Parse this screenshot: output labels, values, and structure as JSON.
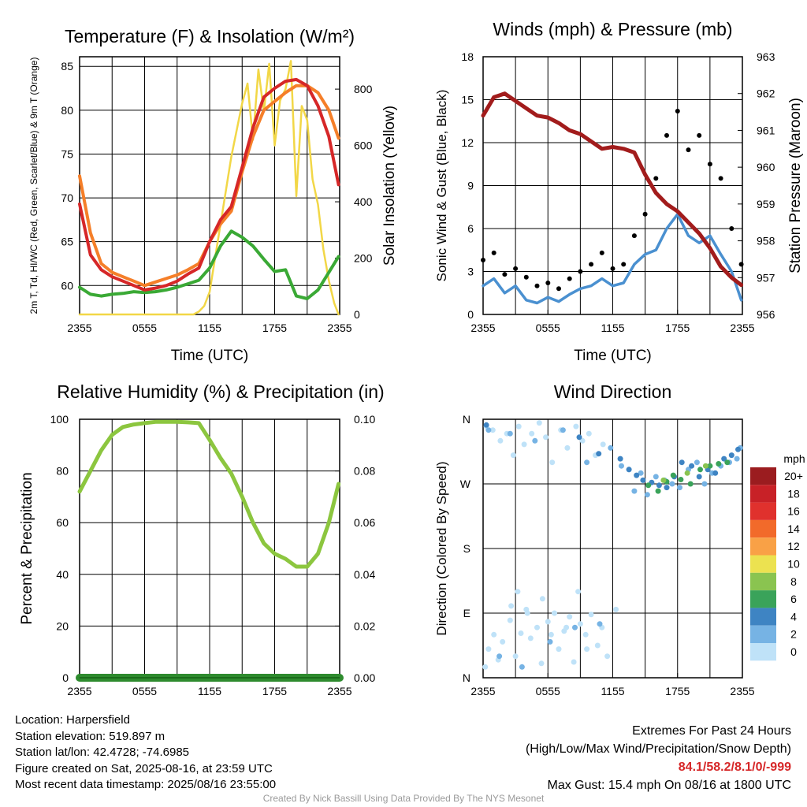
{
  "chart_data": [
    {
      "type": "line",
      "title": "Temperature (F) & Insolation (W/m²)",
      "xlabel": "Time (UTC)",
      "ylabel": "2m T, Td, HI/WC (Red, Green, Scarlet/Blue) & 9m T (Orange)",
      "ylabel_right": "Solar Insolation (Yellow)",
      "x_ticks": [
        "2355",
        "0555",
        "1155",
        "1755",
        "2355"
      ],
      "xlim_hours": [
        0,
        24
      ],
      "ylim": [
        56.7,
        86.1
      ],
      "y_ticks": [
        60,
        65,
        70,
        75,
        80,
        85
      ],
      "ylim_right": [
        0,
        915
      ],
      "y_ticks_right": [
        0,
        200,
        400,
        600,
        800
      ],
      "grid": true,
      "series": [
        {
          "color": "#d62728",
          "x": [
            0,
            1,
            2,
            3,
            4,
            5,
            6,
            7,
            8,
            9,
            10,
            11,
            12,
            13,
            14,
            15,
            16,
            17,
            18,
            19,
            20,
            21,
            22,
            23,
            23.9
          ],
          "values": [
            69.3,
            63.5,
            61.8,
            61.0,
            60.5,
            60.0,
            59.5,
            59.7,
            60.0,
            60.5,
            61.3,
            62.0,
            65.0,
            67.5,
            69.0,
            73.5,
            78.0,
            81.5,
            82.5,
            83.3,
            83.5,
            82.8,
            80.5,
            77.0,
            71.5
          ]
        },
        {
          "color": "#f57f29",
          "x": [
            0,
            1,
            2,
            3,
            4,
            5,
            6,
            7,
            8,
            9,
            10,
            11,
            12,
            13,
            14,
            15,
            16,
            17,
            18,
            19,
            20,
            21,
            22,
            23,
            23.9
          ],
          "values": [
            72.5,
            66.0,
            62.5,
            61.5,
            61.0,
            60.5,
            60.0,
            60.4,
            60.8,
            61.2,
            61.8,
            62.5,
            65.0,
            67.0,
            68.5,
            73.0,
            77.0,
            80.0,
            81.0,
            82.0,
            82.8,
            82.8,
            82.0,
            80.0,
            76.8
          ]
        },
        {
          "color": "#3aa935",
          "x": [
            0,
            1,
            2,
            3,
            4,
            5,
            6,
            7,
            8,
            9,
            10,
            11,
            12,
            13,
            14,
            15,
            16,
            17,
            18,
            19,
            20,
            21,
            22,
            23,
            23.9
          ],
          "values": [
            59.8,
            59.0,
            58.8,
            59.0,
            59.1,
            59.3,
            59.2,
            59.3,
            59.5,
            59.8,
            60.2,
            60.6,
            62.0,
            64.5,
            66.2,
            65.5,
            64.5,
            63.0,
            61.6,
            61.8,
            58.8,
            58.5,
            59.5,
            61.5,
            63.3
          ]
        },
        {
          "color": "#f2d747",
          "x": [
            0,
            10.5,
            11,
            11.5,
            12,
            13,
            14,
            15,
            15.5,
            16,
            16.5,
            17,
            17.5,
            18,
            18.5,
            19,
            19.5,
            20,
            20.5,
            21,
            21.5,
            22,
            22.5,
            23,
            23.5,
            23.9
          ],
          "values": [
            0,
            0,
            10,
            30,
            80,
            320,
            560,
            750,
            820,
            620,
            870,
            720,
            890,
            600,
            760,
            800,
            900,
            420,
            740,
            690,
            480,
            390,
            230,
            120,
            40,
            0
          ]
        }
      ]
    },
    {
      "type": "line",
      "title": "Winds (mph) & Pressure (mb)",
      "xlabel": "Time (UTC)",
      "ylabel": "Sonic Wind & Gust (Blue, Black)",
      "ylabel_right": "Station Pressure (Maroon)",
      "x_ticks": [
        "2355",
        "0555",
        "1155",
        "1755",
        "2355"
      ],
      "xlim_hours": [
        0,
        24
      ],
      "ylim": [
        0,
        18
      ],
      "y_ticks": [
        0,
        3,
        6,
        9,
        12,
        15,
        18
      ],
      "ylim_right": [
        956,
        963
      ],
      "y_ticks_right": [
        956,
        957,
        958,
        959,
        960,
        961,
        962,
        963
      ],
      "grid": true,
      "series": [
        {
          "color": "#a21c1c",
          "x": [
            0,
            1,
            2,
            3,
            4,
            5,
            6,
            7,
            8,
            9,
            10,
            11,
            12,
            13,
            14,
            15,
            16,
            17,
            18,
            19,
            20,
            21,
            22,
            23,
            23.9
          ],
          "values": [
            961.4,
            961.9,
            962.0,
            961.8,
            961.6,
            961.4,
            961.35,
            961.2,
            961.0,
            960.9,
            960.7,
            960.5,
            960.55,
            960.5,
            960.4,
            959.8,
            959.3,
            959.0,
            958.8,
            958.5,
            958.2,
            957.8,
            957.3,
            957.0,
            956.8
          ]
        },
        {
          "color": "#4a90d0",
          "x": [
            0,
            1,
            2,
            3,
            4,
            5,
            6,
            7,
            8,
            9,
            10,
            11,
            12,
            13,
            14,
            15,
            16,
            17,
            18,
            19,
            20,
            21,
            22,
            23,
            23.9
          ],
          "values": [
            2.0,
            2.5,
            1.5,
            2.0,
            1.0,
            0.8,
            1.2,
            0.9,
            1.4,
            1.8,
            2.0,
            2.5,
            2.0,
            2.2,
            3.5,
            4.2,
            4.5,
            6.0,
            7.0,
            5.5,
            5.0,
            5.5,
            4.2,
            3.0,
            1.0
          ]
        },
        {
          "color": "#000000",
          "x": [
            0,
            1,
            2,
            3,
            4,
            5,
            6,
            7,
            8,
            9,
            10,
            11,
            12,
            13,
            14,
            15,
            16,
            17,
            18,
            19,
            20,
            21,
            22,
            23,
            23.9
          ],
          "values": [
            3.8,
            4.3,
            2.8,
            3.2,
            2.6,
            2.0,
            2.2,
            1.8,
            2.5,
            3.0,
            3.5,
            4.3,
            3.2,
            3.5,
            5.5,
            7.0,
            9.5,
            12.5,
            14.2,
            11.5,
            12.5,
            10.5,
            9.5,
            6.0,
            3.5
          ]
        }
      ]
    },
    {
      "type": "line",
      "title": "Relative Humidity (%) & Precipitation (in)",
      "xlabel": "",
      "ylabel": "Percent & Precipitation",
      "x_ticks": [
        "2355",
        "0555",
        "1155",
        "1755",
        "2355"
      ],
      "xlim_hours": [
        0,
        24
      ],
      "ylim": [
        0,
        100
      ],
      "y_ticks": [
        0,
        20,
        40,
        60,
        80,
        100
      ],
      "ylim_right": [
        0,
        0.1
      ],
      "y_ticks_right": [
        "0.00",
        "0.02",
        "0.04",
        "0.06",
        "0.08",
        "0.10"
      ],
      "grid": true,
      "series": [
        {
          "color": "#8cc63f",
          "x": [
            0,
            1,
            2,
            3,
            4,
            5,
            6,
            7,
            8,
            9,
            10,
            11,
            12,
            13,
            14,
            15,
            16,
            17,
            18,
            19,
            20,
            21,
            22,
            23,
            23.9
          ],
          "values": [
            72,
            80,
            88,
            94,
            97,
            98,
            98.5,
            99,
            99,
            99,
            98.8,
            98.5,
            92,
            85,
            79,
            70,
            60,
            52,
            48,
            46,
            43,
            43,
            48,
            60,
            75
          ]
        },
        {
          "color": "#2e8b2e",
          "x": [
            0,
            24
          ],
          "values": [
            0,
            0
          ]
        }
      ]
    },
    {
      "type": "scatter",
      "title": "Wind Direction",
      "ylabel": "Direction (Colored By Speed)",
      "x_ticks": [
        "2355",
        "0555",
        "1155",
        "1755",
        "2355"
      ],
      "xlim_hours": [
        0,
        24
      ],
      "ylim_deg": [
        0,
        360
      ],
      "y_ticks": [
        "N",
        "E",
        "S",
        "W",
        "N"
      ],
      "grid": true,
      "legend": {
        "title": "mph",
        "position": "right",
        "labels": [
          "20+",
          "18",
          "16",
          "14",
          "12",
          "10",
          "8",
          "6",
          "4",
          "2",
          "0"
        ],
        "colors": [
          "#9b1c1f",
          "#c82127",
          "#e0312d",
          "#f26a2a",
          "#f9a146",
          "#ece250",
          "#8ac450",
          "#3aa35a",
          "#3e84c3",
          "#76b3e4",
          "#bfe2f8"
        ]
      },
      "series": [
        {
          "name": "0-2 mph",
          "color": "#bfe2f8",
          "x": [
            0.2,
            0.5,
            1.0,
            1.4,
            1.8,
            2.5,
            3.0,
            3.5,
            4.0,
            4.4,
            5.0,
            5.4,
            6.0,
            6.6,
            7.0,
            7.5,
            8.0,
            8.4,
            9.0,
            9.5,
            10.0,
            10.6,
            11.0,
            11.5,
            12.3,
            0.3,
            0.9,
            1.6,
            2.2,
            2.8,
            3.3,
            3.8,
            4.5,
            5.2,
            5.8,
            6.4,
            7.2,
            7.8,
            8.6,
            9.2,
            9.8,
            10.4,
            11.1,
            2.6,
            3.2,
            4.1,
            5.5,
            6.3,
            7.7,
            8.8,
            9.6
          ],
          "values": [
            15,
            40,
            60,
            25,
            50,
            80,
            30,
            62,
            95,
            55,
            70,
            20,
            78,
            90,
            40,
            65,
            85,
            22,
            75,
            60,
            88,
            45,
            70,
            30,
            95,
            350,
            345,
            330,
            340,
            310,
            350,
            325,
            340,
            355,
            335,
            300,
            345,
            320,
            350,
            330,
            340,
            310,
            325,
            100,
            120,
            90,
            110,
            60,
            70,
            120,
            40
          ]
        },
        {
          "name": "2-4 mph",
          "color": "#76b3e4",
          "x": [
            0.5,
            1.5,
            2.5,
            3.6,
            4.8,
            6.2,
            7.4,
            8.5,
            9.6,
            10.8,
            11.8,
            12.8,
            13.5,
            14.0,
            14.6,
            15.2,
            16.0,
            16.8,
            17.5,
            18.2,
            19.0,
            19.8,
            20.5,
            21.2,
            22.0,
            22.8,
            23.5,
            23.8
          ],
          "values": [
            345,
            30,
            340,
            15,
            330,
            50,
            345,
            70,
            300,
            75,
            320,
            295,
            290,
            260,
            285,
            255,
            280,
            275,
            270,
            265,
            290,
            300,
            270,
            285,
            295,
            300,
            305,
            320
          ]
        },
        {
          "name": "4-6 mph",
          "color": "#3e84c3",
          "x": [
            0.3,
            8.9,
            10.7,
            12.7,
            13.5,
            14.2,
            14.8,
            15.6,
            16.3,
            17.0,
            17.7,
            18.4,
            19.3,
            20.0,
            20.8,
            21.5,
            22.3,
            23.0,
            23.6
          ],
          "values": [
            352,
            335,
            312,
            305,
            290,
            282,
            275,
            272,
            268,
            265,
            280,
            300,
            295,
            280,
            290,
            285,
            305,
            310,
            318
          ]
        },
        {
          "name": "6-8 mph",
          "color": "#3aa35a",
          "x": [
            15.3,
            16.2,
            17.0,
            17.6,
            18.3,
            19.2,
            20.1,
            21.0,
            21.8,
            22.6
          ],
          "values": [
            268,
            260,
            273,
            282,
            276,
            270,
            290,
            295,
            298,
            300
          ]
        },
        {
          "name": "8-10 mph",
          "color": "#8ac450",
          "x": [
            16.7,
            18.9,
            20.6
          ],
          "values": [
            275,
            285,
            295
          ]
        }
      ]
    }
  ],
  "info": {
    "location": "Location: Harpersfield",
    "elevation": "Station elevation: 519.897 m",
    "latlon": "Station lat/lon: 42.4728; -74.6985",
    "created": "Figure created on Sat, 2025-08-16, at 23:59 UTC",
    "recent": "Most recent data timestamp: 2025/08/16 23:55:00"
  },
  "extremes": {
    "title": "Extremes For Past 24 Hours",
    "subtitle": "(High/Low/Max Wind/Precipitation/Snow Depth)",
    "values": "84.1/58.2/8.1/0/-999",
    "max_gust": "Max Gust: 15.4 mph On 08/16 at 1800 UTC"
  },
  "footer": "Created By Nick Bassill Using Data Provided By The NYS Mesonet"
}
